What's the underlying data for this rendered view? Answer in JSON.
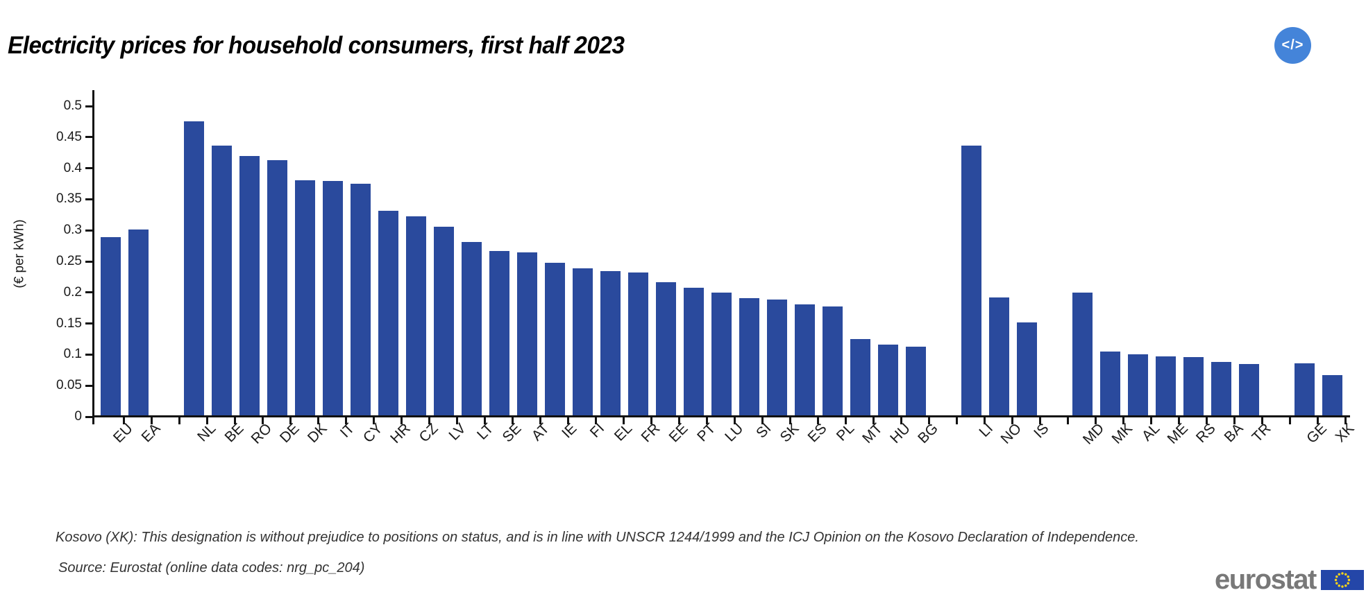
{
  "header": {
    "embed_button_label": "</>"
  },
  "chart_data": {
    "type": "bar",
    "title": "Electricity prices for household consumers, first half 2023",
    "ylabel": "(€ per kWh)",
    "ylim": [
      0,
      0.5
    ],
    "ytick_labels": [
      "0",
      "0.05",
      "0.1",
      "0.15",
      "0.2",
      "0.25",
      "0.3",
      "0.35",
      "0.4",
      "0.45",
      "0.5"
    ],
    "bar_color": "#2a4a9d",
    "grid": false,
    "legend": false,
    "groups": [
      {
        "bars": [
          {
            "code": "EU",
            "value": 0.289
          },
          {
            "code": "EA",
            "value": 0.301
          }
        ]
      },
      {
        "bars": [
          {
            "code": "NL",
            "value": 0.475
          },
          {
            "code": "BE",
            "value": 0.436
          },
          {
            "code": "RO",
            "value": 0.42
          },
          {
            "code": "DE",
            "value": 0.413
          },
          {
            "code": "DK",
            "value": 0.381
          },
          {
            "code": "IT",
            "value": 0.379
          },
          {
            "code": "CY",
            "value": 0.375
          },
          {
            "code": "HR",
            "value": 0.332
          },
          {
            "code": "CZ",
            "value": 0.322
          },
          {
            "code": "LV",
            "value": 0.306
          },
          {
            "code": "LT",
            "value": 0.281
          },
          {
            "code": "SE",
            "value": 0.267
          },
          {
            "code": "AT",
            "value": 0.265
          },
          {
            "code": "IE",
            "value": 0.248
          },
          {
            "code": "FI",
            "value": 0.239
          },
          {
            "code": "EL",
            "value": 0.234
          },
          {
            "code": "FR",
            "value": 0.232
          },
          {
            "code": "EE",
            "value": 0.217
          },
          {
            "code": "PT",
            "value": 0.208
          },
          {
            "code": "LU",
            "value": 0.2
          },
          {
            "code": "SI",
            "value": 0.191
          },
          {
            "code": "SK",
            "value": 0.189
          },
          {
            "code": "ES",
            "value": 0.181
          },
          {
            "code": "PL",
            "value": 0.177
          },
          {
            "code": "MT",
            "value": 0.125
          },
          {
            "code": "HU",
            "value": 0.116
          },
          {
            "code": "BG",
            "value": 0.113
          }
        ]
      },
      {
        "bars": [
          {
            "code": "LI",
            "value": 0.436
          },
          {
            "code": "NO",
            "value": 0.192
          },
          {
            "code": "IS",
            "value": 0.152
          }
        ]
      },
      {
        "bars": [
          {
            "code": "MD",
            "value": 0.2
          },
          {
            "code": "MK",
            "value": 0.105
          },
          {
            "code": "AL",
            "value": 0.1
          },
          {
            "code": "ME",
            "value": 0.097
          },
          {
            "code": "RS",
            "value": 0.096
          },
          {
            "code": "BA",
            "value": 0.088
          },
          {
            "code": "TR",
            "value": 0.085
          }
        ]
      },
      {
        "bars": [
          {
            "code": "GE",
            "value": 0.086
          },
          {
            "code": "XK",
            "value": 0.067
          }
        ]
      }
    ]
  },
  "footer": {
    "note": "Kosovo (XK): This designation is without prejudice to positions on status, and is in line with UNSCR 1244/1999 and the ICJ Opinion on the Kosovo Declaration of Independence.",
    "source": "Source: Eurostat (online data codes: nrg_pc_204)",
    "logo_text": "eurostat",
    "logo_flag_colors": {
      "field": "#2446a8",
      "stars": "#ffd617"
    }
  }
}
